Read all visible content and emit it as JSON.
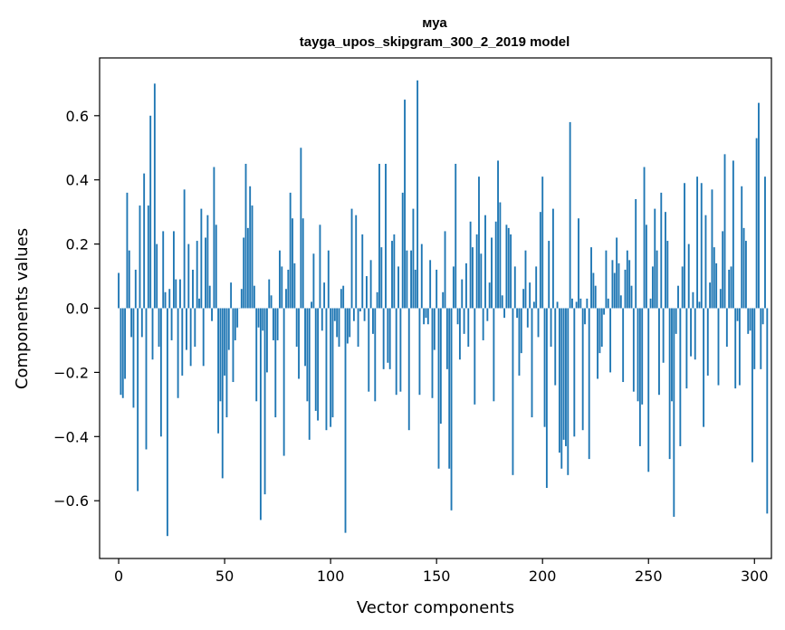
{
  "chart_data": {
    "type": "bar",
    "title": "муа",
    "subtitle": "tayga_upos_skipgram_300_2_2019 model",
    "xlabel": "Vector components",
    "ylabel": "Components values",
    "xlim": [
      -9,
      308
    ],
    "ylim": [
      -0.78,
      0.78
    ],
    "xticks": [
      0,
      50,
      100,
      150,
      200,
      250,
      300
    ],
    "yticks": [
      -0.6,
      -0.4,
      -0.2,
      0.0,
      0.2,
      0.4,
      0.6
    ],
    "ytick_labels": [
      "−0.6",
      "−0.4",
      "−0.2",
      "0.0",
      "0.2",
      "0.4",
      "0.6"
    ],
    "values": [
      0.11,
      -0.27,
      -0.28,
      -0.22,
      0.36,
      0.18,
      -0.09,
      -0.31,
      0.12,
      -0.57,
      0.32,
      -0.09,
      0.42,
      -0.44,
      0.32,
      0.6,
      -0.16,
      0.7,
      0.2,
      -0.12,
      -0.4,
      0.24,
      0.05,
      -0.71,
      0.06,
      -0.1,
      0.24,
      0.09,
      -0.28,
      0.09,
      -0.21,
      0.37,
      -0.13,
      0.2,
      -0.18,
      0.12,
      -0.12,
      0.21,
      0.03,
      0.31,
      -0.18,
      0.22,
      0.29,
      0.07,
      -0.04,
      0.44,
      0.26,
      -0.39,
      -0.29,
      -0.53,
      -0.21,
      -0.34,
      -0.13,
      0.08,
      -0.23,
      -0.1,
      -0.06,
      0.0,
      0.06,
      0.22,
      0.45,
      0.25,
      0.38,
      0.32,
      0.07,
      -0.29,
      -0.06,
      -0.66,
      -0.07,
      -0.58,
      -0.2,
      0.09,
      0.04,
      -0.1,
      -0.34,
      -0.1,
      0.18,
      0.13,
      -0.46,
      0.06,
      0.12,
      0.36,
      0.28,
      0.14,
      -0.12,
      -0.22,
      0.5,
      0.28,
      -0.18,
      -0.29,
      -0.41,
      0.02,
      0.17,
      -0.32,
      -0.35,
      0.26,
      -0.07,
      0.08,
      -0.38,
      0.18,
      -0.37,
      -0.34,
      -0.04,
      -0.09,
      -0.12,
      0.06,
      0.07,
      -0.7,
      -0.11,
      -0.09,
      0.31,
      -0.04,
      0.29,
      -0.12,
      -0.01,
      0.23,
      -0.04,
      0.1,
      -0.26,
      0.15,
      -0.08,
      -0.29,
      0.05,
      0.45,
      0.19,
      -0.19,
      0.45,
      -0.17,
      -0.19,
      0.21,
      0.23,
      -0.27,
      0.13,
      -0.26,
      0.36,
      0.65,
      0.18,
      -0.38,
      0.18,
      0.31,
      0.12,
      0.71,
      -0.27,
      0.2,
      -0.05,
      -0.03,
      -0.05,
      0.15,
      -0.28,
      -0.13,
      0.12,
      -0.5,
      -0.36,
      0.05,
      0.24,
      -0.19,
      -0.5,
      -0.63,
      0.13,
      0.45,
      -0.05,
      -0.16,
      0.09,
      -0.08,
      0.14,
      -0.12,
      0.27,
      0.19,
      -0.3,
      0.23,
      0.41,
      0.17,
      -0.1,
      0.29,
      -0.04,
      0.08,
      0.22,
      -0.29,
      0.27,
      0.46,
      0.33,
      0.04,
      -0.03,
      0.26,
      0.25,
      0.23,
      -0.52,
      0.13,
      -0.03,
      -0.21,
      -0.14,
      0.06,
      0.18,
      -0.06,
      0.08,
      -0.34,
      0.02,
      0.13,
      -0.09,
      0.3,
      0.41,
      -0.37,
      -0.56,
      0.21,
      -0.12,
      0.31,
      -0.24,
      0.02,
      -0.45,
      -0.5,
      -0.41,
      -0.43,
      -0.52,
      0.58,
      0.03,
      -0.4,
      0.02,
      0.28,
      0.03,
      -0.38,
      -0.05,
      0.03,
      -0.47,
      0.19,
      0.11,
      0.07,
      -0.22,
      -0.14,
      -0.12,
      -0.02,
      0.18,
      0.03,
      -0.2,
      0.15,
      0.11,
      0.22,
      0.14,
      0.04,
      -0.23,
      0.12,
      0.18,
      0.15,
      0.07,
      -0.26,
      0.34,
      -0.29,
      -0.43,
      -0.3,
      0.44,
      0.26,
      -0.51,
      0.03,
      0.13,
      0.31,
      0.18,
      -0.27,
      0.36,
      -0.17,
      0.3,
      0.21,
      -0.47,
      -0.29,
      -0.65,
      -0.08,
      0.07,
      -0.43,
      0.13,
      0.39,
      -0.25,
      0.2,
      -0.15,
      0.05,
      -0.16,
      0.41,
      0.02,
      0.39,
      -0.37,
      0.29,
      -0.21,
      0.08,
      0.37,
      0.19,
      0.14,
      -0.24,
      0.06,
      0.24,
      0.48,
      -0.12,
      0.12,
      0.13,
      0.46,
      -0.25,
      -0.04,
      -0.24,
      0.38,
      0.25,
      0.21,
      -0.08,
      -0.07,
      -0.48,
      -0.19,
      0.53,
      0.64,
      -0.19,
      -0.05,
      0.41,
      -0.64
    ]
  }
}
